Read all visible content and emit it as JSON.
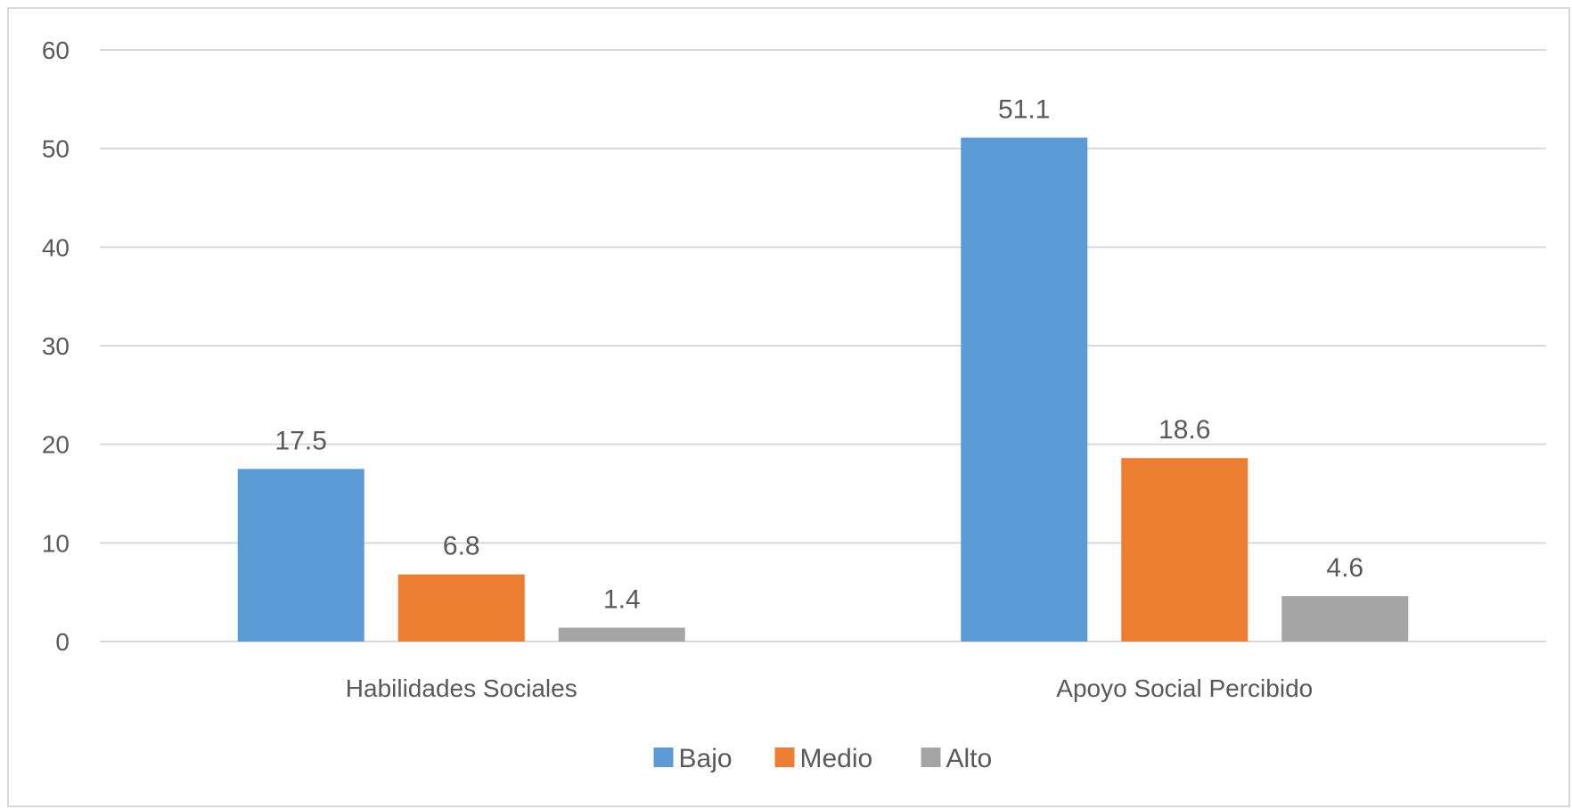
{
  "chart_data": {
    "type": "bar",
    "categories": [
      "Habilidades Sociales",
      "Apoyo Social Percibido"
    ],
    "series": [
      {
        "name": "Bajo",
        "values": [
          17.5,
          51.1
        ],
        "color": "#5b9bd5"
      },
      {
        "name": "Medio",
        "values": [
          6.8,
          18.6
        ],
        "color": "#ed7d31"
      },
      {
        "name": "Alto",
        "values": [
          1.4,
          4.6
        ],
        "color": "#a5a5a5"
      }
    ],
    "data_labels": [
      [
        "17.5",
        "51.1"
      ],
      [
        "6.8",
        "18.6"
      ],
      [
        "1.4",
        "4.6"
      ]
    ],
    "yticks": [
      "0",
      "10",
      "20",
      "30",
      "40",
      "50",
      "60"
    ],
    "ylim": [
      0,
      60
    ],
    "grid": true,
    "legend_position": "bottom-center",
    "title": "",
    "xlabel": "",
    "ylabel": ""
  }
}
